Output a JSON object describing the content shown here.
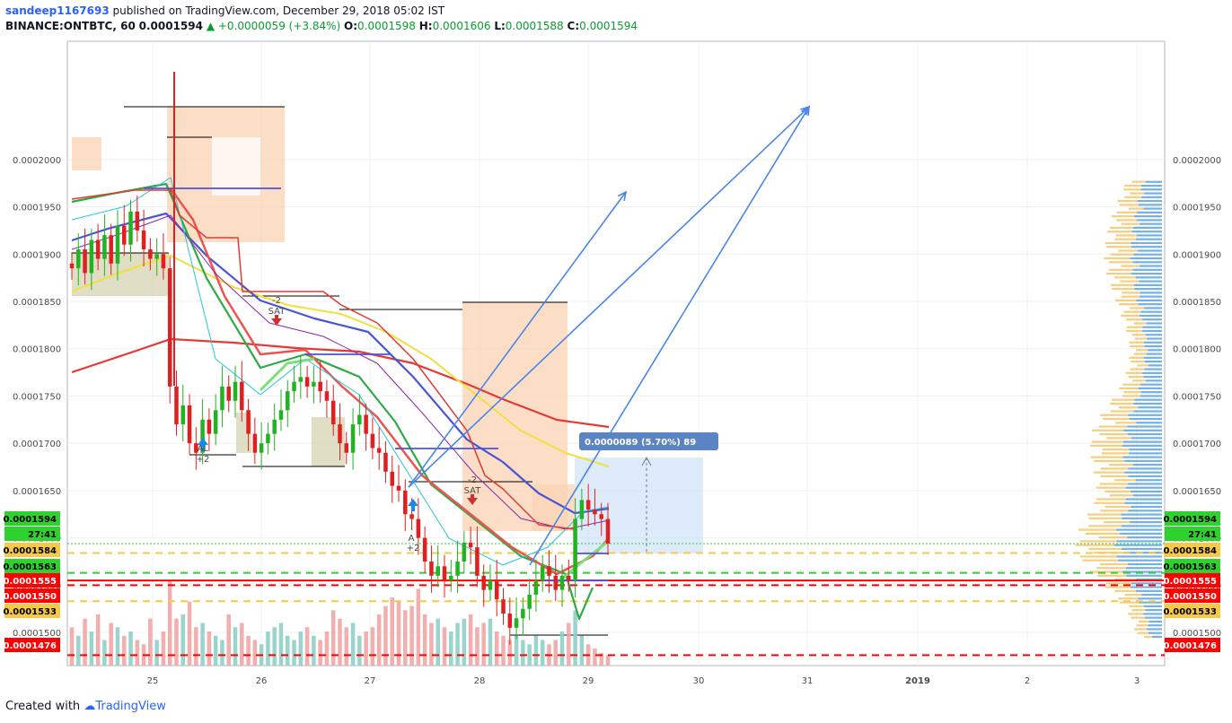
{
  "header": {
    "user": "sandeep1167693",
    "published": "published on TradingView.com, December 29, 2018 05:02 IST",
    "symbol": "BINANCE:ONTBTC, 60",
    "last": "0.0001594",
    "arrow": "▲",
    "change": "+0.0000059 (+3.84%)",
    "o_label": "O:",
    "o": "0.0001598",
    "h_label": "H:",
    "h": "0.0001606",
    "l_label": "L:",
    "l": "0.0001588",
    "c_label": "C:",
    "c": "0.0001594"
  },
  "footer": {
    "created": "Created with",
    "brand": "TradingView"
  },
  "chart_data": {
    "type": "candlestick",
    "symbol": "BINANCE:ONTBTC",
    "interval": "60",
    "ylim": [
      0.0001465,
      0.0002125
    ],
    "y_ticks": [
      "0.0001500",
      "0.0001550",
      "0.0001600",
      "0.0001650",
      "0.0001700",
      "0.0001750",
      "0.0001800",
      "0.0001850",
      "0.0001900",
      "0.0001950",
      "0.0002000"
    ],
    "x_ticks": [
      "25",
      "26",
      "27",
      "28",
      "29",
      "30",
      "31",
      "2019",
      "2",
      "3"
    ],
    "x_domain": [
      "24 Dec 05:00",
      "3 Jan 06:00"
    ],
    "price_levels": [
      {
        "label": "0.0001594",
        "value": 0.0001594,
        "color": "#2fd12f",
        "text_color": "#000000",
        "style": "dotted"
      },
      {
        "label": "27:41",
        "value": 0.000158,
        "color": "#2fd12f",
        "text_color": "#000000",
        "style": "none"
      },
      {
        "label": "0.0001584",
        "value": 0.0001584,
        "color": "#f7c948",
        "text_color": "#000000",
        "style": "dashed"
      },
      {
        "label": "0.0001563",
        "value": 0.0001563,
        "color": "#2fd12f",
        "text_color": "#000000",
        "style": "dashed"
      },
      {
        "label": "0.0001555",
        "value": 0.0001555,
        "color": "#ff0000",
        "text_color": "#ffffff",
        "style": "solid"
      },
      {
        "label": "0.0001550",
        "value": 0.000155,
        "color": "#ff0000",
        "text_color": "#ffffff",
        "style": "dashed"
      },
      {
        "label": "0.0001533",
        "value": 0.0001533,
        "color": "#f7c948",
        "text_color": "#000000",
        "style": "dashed"
      },
      {
        "label": "0.0001476",
        "value": 0.0001476,
        "color": "#ff0000",
        "text_color": "#ffffff",
        "style": "dashed"
      }
    ],
    "measure_label": "0.0000089 (5.70%) 89",
    "annotations": {
      "al": "AL",
      "al_count": "+2",
      "sat1_count": "-2",
      "sat1": "SAT",
      "sat2_count": "-2",
      "sat2": "SAT",
      "a2": "A",
      "a2_count": "+2"
    },
    "candles_close": [
      0.0001885,
      0.0001905,
      0.000188,
      0.0001915,
      0.0001895,
      0.000192,
      0.000189,
      0.000193,
      0.000191,
      0.0001945,
      0.0001925,
      0.0001905,
      0.0001895,
      0.00019,
      0.0001885,
      0.000176,
      0.000172,
      0.000174,
      0.00017,
      0.000169,
      0.0001725,
      0.000171,
      0.0001735,
      0.000176,
      0.0001745,
      0.0001765,
      0.0001735,
      0.000171,
      0.000169,
      0.00017,
      0.000171,
      0.0001725,
      0.0001735,
      0.0001755,
      0.0001765,
      0.000177,
      0.000176,
      0.0001765,
      0.0001755,
      0.0001745,
      0.000172,
      0.00017,
      0.000169,
      0.000172,
      0.000173,
      0.000171,
      0.0001695,
      0.000169,
      0.000167,
      0.0001655,
      0.000165,
      0.0001625,
      0.000162,
      0.00016,
      0.0001575,
      0.000156,
      0.000157,
      0.0001555,
      0.000156,
      0.0001575,
      0.0001595,
      0.000159,
      0.000156,
      0.0001545,
      0.0001555,
      0.0001535,
      0.000152,
      0.0001505,
      0.0001515,
      0.0001525,
      0.000154,
      0.0001555,
      0.000157,
      0.000156,
      0.0001545,
      0.000156,
      0.0001555,
      0.000162,
      0.000164,
      0.000163,
      0.0001625,
      0.000162,
      0.0001594
    ],
    "volume_rel": [
      0.45,
      0.35,
      0.55,
      0.4,
      0.6,
      0.3,
      0.5,
      0.45,
      0.35,
      0.4,
      0.3,
      0.25,
      0.55,
      0.3,
      0.4,
      1.0,
      0.55,
      0.6,
      0.75,
      0.45,
      0.5,
      0.4,
      0.35,
      0.3,
      0.6,
      0.45,
      0.5,
      0.35,
      0.3,
      0.25,
      0.4,
      0.45,
      0.5,
      0.35,
      0.3,
      0.4,
      0.45,
      0.35,
      0.3,
      0.4,
      0.65,
      0.55,
      0.45,
      0.5,
      0.35,
      0.4,
      0.45,
      0.6,
      0.7,
      0.8,
      0.75,
      0.65,
      0.7,
      0.9,
      0.6,
      0.5,
      0.55,
      0.45,
      0.4,
      0.5,
      0.55,
      0.6,
      0.45,
      0.5,
      0.55,
      0.4,
      0.35,
      0.3,
      0.35,
      0.3,
      0.25,
      0.35,
      0.3,
      0.25,
      0.3,
      0.4,
      0.5,
      0.65,
      0.35,
      0.25,
      0.2,
      0.15,
      0.12
    ]
  }
}
